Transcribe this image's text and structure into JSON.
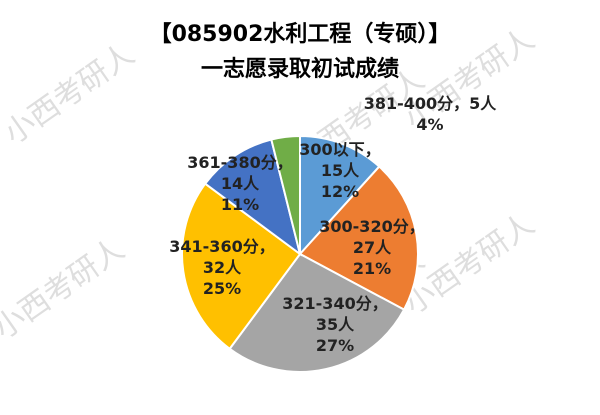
{
  "chart_data": {
    "type": "pie",
    "title": [
      "【085902水利工程（专硕）】",
      "一志愿录取初试成绩"
    ],
    "categories": [
      "300以下",
      "300-320分",
      "321-340分",
      "341-360分",
      "361-380分",
      "381-400分"
    ],
    "values": [
      15,
      27,
      35,
      32,
      14,
      5
    ],
    "value_labels": [
      "15人",
      "27人",
      "35人",
      "32人",
      "14人",
      "5人"
    ],
    "percents": [
      12,
      21,
      27,
      25,
      11,
      4
    ],
    "percent_labels": [
      "12%",
      "21%",
      "27%",
      "25%",
      "11%",
      "4%"
    ],
    "label_separator": "，",
    "colors": [
      "#5b9bd5",
      "#ed7d31",
      "#a5a5a5",
      "#ffc000",
      "#4472c4",
      "#70ad47"
    ],
    "watermark": "小西考研人"
  }
}
